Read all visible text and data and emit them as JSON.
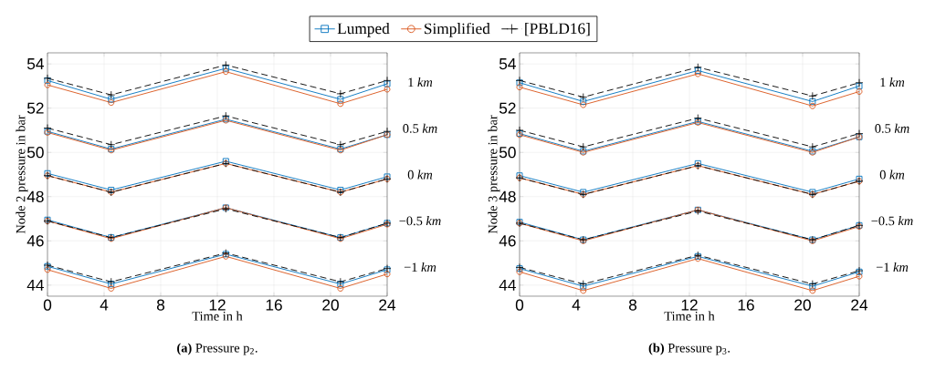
{
  "chart_data": [
    {
      "type": "line",
      "xlabel": "Time in h",
      "ylabel": "Node 2 pressure in bar",
      "x": [
        0,
        4.5,
        12.6,
        20.7,
        24
      ],
      "xlim": [
        0,
        24
      ],
      "ylim": [
        43.5,
        54.5
      ],
      "xticks": [
        0,
        4,
        8,
        12,
        16,
        20,
        24
      ],
      "yticks": [
        44,
        46,
        48,
        50,
        52,
        54
      ],
      "grid": true,
      "legend": "top",
      "series": [
        {
          "name": "Lumped",
          "color": "#0072bd",
          "marker": "square",
          "line_style": "solid",
          "values": [
            53.25,
            52.4,
            53.8,
            52.4,
            53.1
          ]
        },
        {
          "name": "Simplified",
          "color": "#d95319",
          "marker": "circle",
          "line_style": "solid",
          "values": [
            53.05,
            52.25,
            53.65,
            52.2,
            52.85
          ]
        },
        {
          "name": "[PBLD16]",
          "color": "#000000",
          "marker": "cross",
          "line_style": "dashed",
          "values": [
            53.35,
            52.6,
            53.95,
            52.65,
            53.25
          ]
        },
        {
          "color": "#0072bd",
          "marker": "square",
          "line_style": "solid",
          "values": [
            50.95,
            50.15,
            51.5,
            50.15,
            50.8
          ]
        },
        {
          "color": "#d95319",
          "marker": "circle",
          "line_style": "solid",
          "values": [
            50.9,
            50.1,
            51.45,
            50.1,
            50.8
          ]
        },
        {
          "color": "#000000",
          "marker": "cross",
          "line_style": "dashed",
          "values": [
            51.1,
            50.35,
            51.65,
            50.35,
            50.95
          ]
        },
        {
          "color": "#0072bd",
          "marker": "square",
          "line_style": "solid",
          "values": [
            49.05,
            48.3,
            49.6,
            48.3,
            48.9
          ]
        },
        {
          "color": "#d95319",
          "marker": "circle",
          "line_style": "solid",
          "values": [
            48.95,
            48.2,
            49.5,
            48.2,
            48.8
          ]
        },
        {
          "color": "#000000",
          "marker": "cross",
          "line_style": "dashed",
          "values": [
            48.95,
            48.2,
            49.5,
            48.2,
            48.8
          ]
        },
        {
          "color": "#0072bd",
          "marker": "square",
          "line_style": "solid",
          "values": [
            46.95,
            46.15,
            47.5,
            46.15,
            46.8
          ]
        },
        {
          "color": "#d95319",
          "marker": "circle",
          "line_style": "solid",
          "values": [
            46.9,
            46.1,
            47.5,
            46.1,
            46.75
          ]
        },
        {
          "color": "#000000",
          "marker": "cross",
          "line_style": "dashed",
          "values": [
            46.9,
            46.15,
            47.45,
            46.15,
            46.8
          ]
        },
        {
          "color": "#0072bd",
          "marker": "square",
          "line_style": "solid",
          "values": [
            44.85,
            44.05,
            45.4,
            44.05,
            44.7
          ]
        },
        {
          "color": "#d95319",
          "marker": "circle",
          "line_style": "solid",
          "values": [
            44.7,
            43.85,
            45.3,
            43.85,
            44.5
          ]
        },
        {
          "color": "#000000",
          "marker": "cross",
          "line_style": "dashed",
          "values": [
            44.9,
            44.15,
            45.45,
            44.15,
            44.75
          ]
        }
      ],
      "annotations": [
        "1 *km*",
        "0.5 *km*",
        "0 *km*",
        "−0.5 *km*",
        "−1 *km*",
        "**(a)** Pressure p$_{2}$."
      ]
    },
    {
      "type": "line",
      "xlabel": "Time in h",
      "ylabel": "Node 3 pressure in bar",
      "x": [
        0,
        4.5,
        12.6,
        20.7,
        24
      ],
      "xlim": [
        0,
        24
      ],
      "ylim": [
        43.5,
        54.5
      ],
      "xticks": [
        0,
        4,
        8,
        12,
        16,
        20,
        24
      ],
      "yticks": [
        44,
        46,
        48,
        50,
        52,
        54
      ],
      "grid": true,
      "series": [
        {
          "color": "#0072bd",
          "marker": "square",
          "line_style": "solid",
          "values": [
            53.15,
            52.3,
            53.7,
            52.3,
            53.0
          ]
        },
        {
          "color": "#d95319",
          "marker": "circle",
          "line_style": "solid",
          "values": [
            52.95,
            52.15,
            53.55,
            52.1,
            52.75
          ]
        },
        {
          "color": "#000000",
          "marker": "cross",
          "line_style": "dashed",
          "values": [
            53.25,
            52.5,
            53.85,
            52.55,
            53.15
          ]
        },
        {
          "color": "#0072bd",
          "marker": "square",
          "line_style": "solid",
          "values": [
            50.85,
            50.05,
            51.4,
            50.05,
            50.7
          ]
        },
        {
          "color": "#d95319",
          "marker": "circle",
          "line_style": "solid",
          "values": [
            50.8,
            50.0,
            51.35,
            50.0,
            50.7
          ]
        },
        {
          "color": "#000000",
          "marker": "cross",
          "line_style": "dashed",
          "values": [
            51.0,
            50.25,
            51.55,
            50.25,
            50.85
          ]
        },
        {
          "color": "#0072bd",
          "marker": "square",
          "line_style": "solid",
          "values": [
            48.95,
            48.2,
            49.5,
            48.2,
            48.8
          ]
        },
        {
          "color": "#d95319",
          "marker": "circle",
          "line_style": "solid",
          "values": [
            48.85,
            48.1,
            49.4,
            48.1,
            48.7
          ]
        },
        {
          "color": "#000000",
          "marker": "cross",
          "line_style": "dashed",
          "values": [
            48.85,
            48.1,
            49.4,
            48.1,
            48.7
          ]
        },
        {
          "color": "#0072bd",
          "marker": "square",
          "line_style": "solid",
          "values": [
            46.85,
            46.05,
            47.4,
            46.05,
            46.7
          ]
        },
        {
          "color": "#d95319",
          "marker": "circle",
          "line_style": "solid",
          "values": [
            46.8,
            46.0,
            47.4,
            46.0,
            46.65
          ]
        },
        {
          "color": "#000000",
          "marker": "cross",
          "line_style": "dashed",
          "values": [
            46.8,
            46.05,
            47.35,
            46.05,
            46.7
          ]
        },
        {
          "color": "#0072bd",
          "marker": "square",
          "line_style": "solid",
          "values": [
            44.75,
            43.95,
            45.3,
            43.95,
            44.6
          ]
        },
        {
          "color": "#d95319",
          "marker": "circle",
          "line_style": "solid",
          "values": [
            44.6,
            43.75,
            45.2,
            43.75,
            44.4
          ]
        },
        {
          "color": "#000000",
          "marker": "cross",
          "line_style": "dashed",
          "values": [
            44.8,
            44.05,
            45.35,
            44.05,
            44.65
          ]
        }
      ],
      "annotations": [
        "1 *km*",
        "0.5 *km*",
        "0 *km*",
        "−0.5 *km*",
        "−1 *km*",
        "**(b)** Pressure p$_{3}$."
      ]
    }
  ]
}
